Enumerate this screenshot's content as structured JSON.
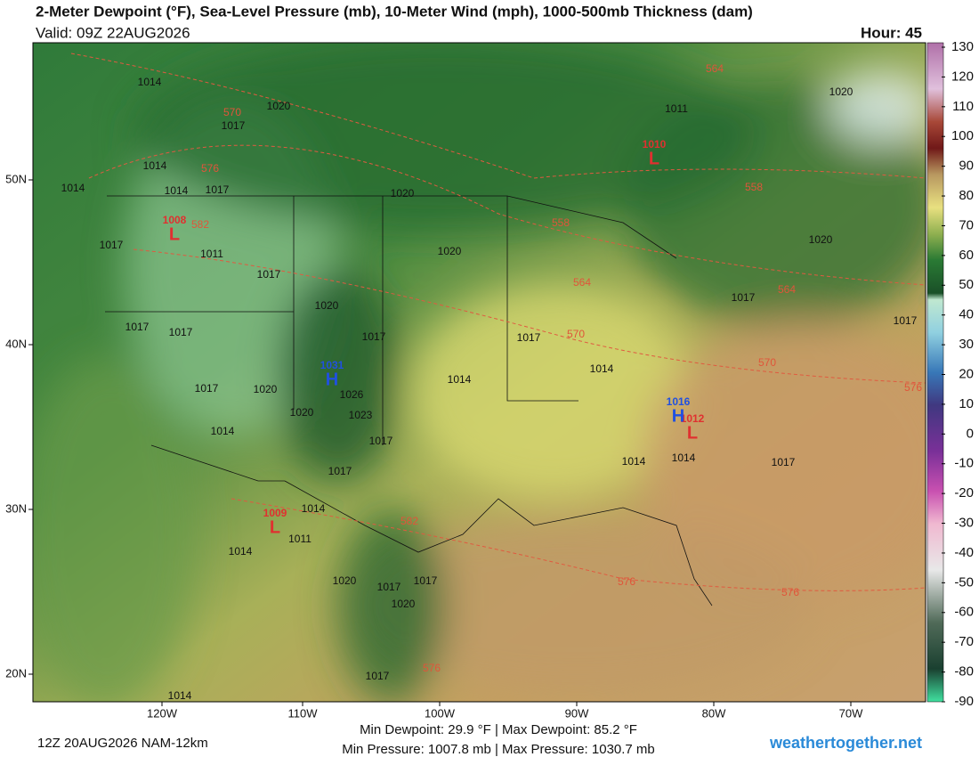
{
  "header": {
    "title": "2-Meter Dewpoint (°F), Sea-Level Pressure (mb), 10-Meter Wind (mph), 1000-500mb Thickness (dam)",
    "valid": "Valid: 09Z 22AUG2026",
    "hour": "Hour: 45"
  },
  "colorbar": {
    "ticks": [
      130,
      120,
      110,
      100,
      90,
      80,
      70,
      60,
      50,
      40,
      30,
      20,
      10,
      0,
      -10,
      -20,
      -30,
      -40,
      -50,
      -60,
      -70,
      -80,
      -90
    ]
  },
  "latitude_labels": [
    "50N",
    "40N",
    "30N",
    "20N"
  ],
  "longitude_labels": [
    "120W",
    "110W",
    "100W",
    "90W",
    "80W",
    "70W"
  ],
  "pressure_labels": [
    "1014",
    "1020",
    "1017",
    "1014",
    "1014",
    "1014",
    "1017",
    "1020",
    "1011",
    "1020",
    "1020",
    "1017",
    "1011",
    "1017",
    "1020",
    "1020",
    "1017",
    "1017",
    "1017",
    "1017",
    "1017",
    "1017",
    "1014",
    "1014",
    "1017",
    "1020",
    "1026",
    "1020",
    "1023",
    "1014",
    "1017",
    "1017",
    "1014",
    "1014",
    "1017",
    "1014",
    "1011",
    "1014",
    "1020",
    "1017",
    "1017",
    "1020",
    "1017",
    "1014"
  ],
  "thickness_labels": [
    "570",
    "576",
    "582",
    "564",
    "558",
    "558",
    "564",
    "564",
    "570",
    "570",
    "576",
    "582",
    "576",
    "576",
    "576"
  ],
  "pressure_centers": [
    {
      "type": "L",
      "value": "1010"
    },
    {
      "type": "L",
      "value": "1008"
    },
    {
      "type": "L",
      "value": "1009"
    },
    {
      "type": "L",
      "value": "1012"
    },
    {
      "type": "H",
      "value": "1031"
    },
    {
      "type": "H",
      "value": "1016"
    }
  ],
  "footer": {
    "run": "12Z 20AUG2026 NAM-12km",
    "dewpoint_range": "Min Dewpoint: 29.9 °F | Max Dewpoint: 85.2 °F",
    "pressure_range": "Min Pressure: 1007.8 mb | Max Pressure: 1030.7 mb",
    "credit": "weathertogether.net"
  }
}
